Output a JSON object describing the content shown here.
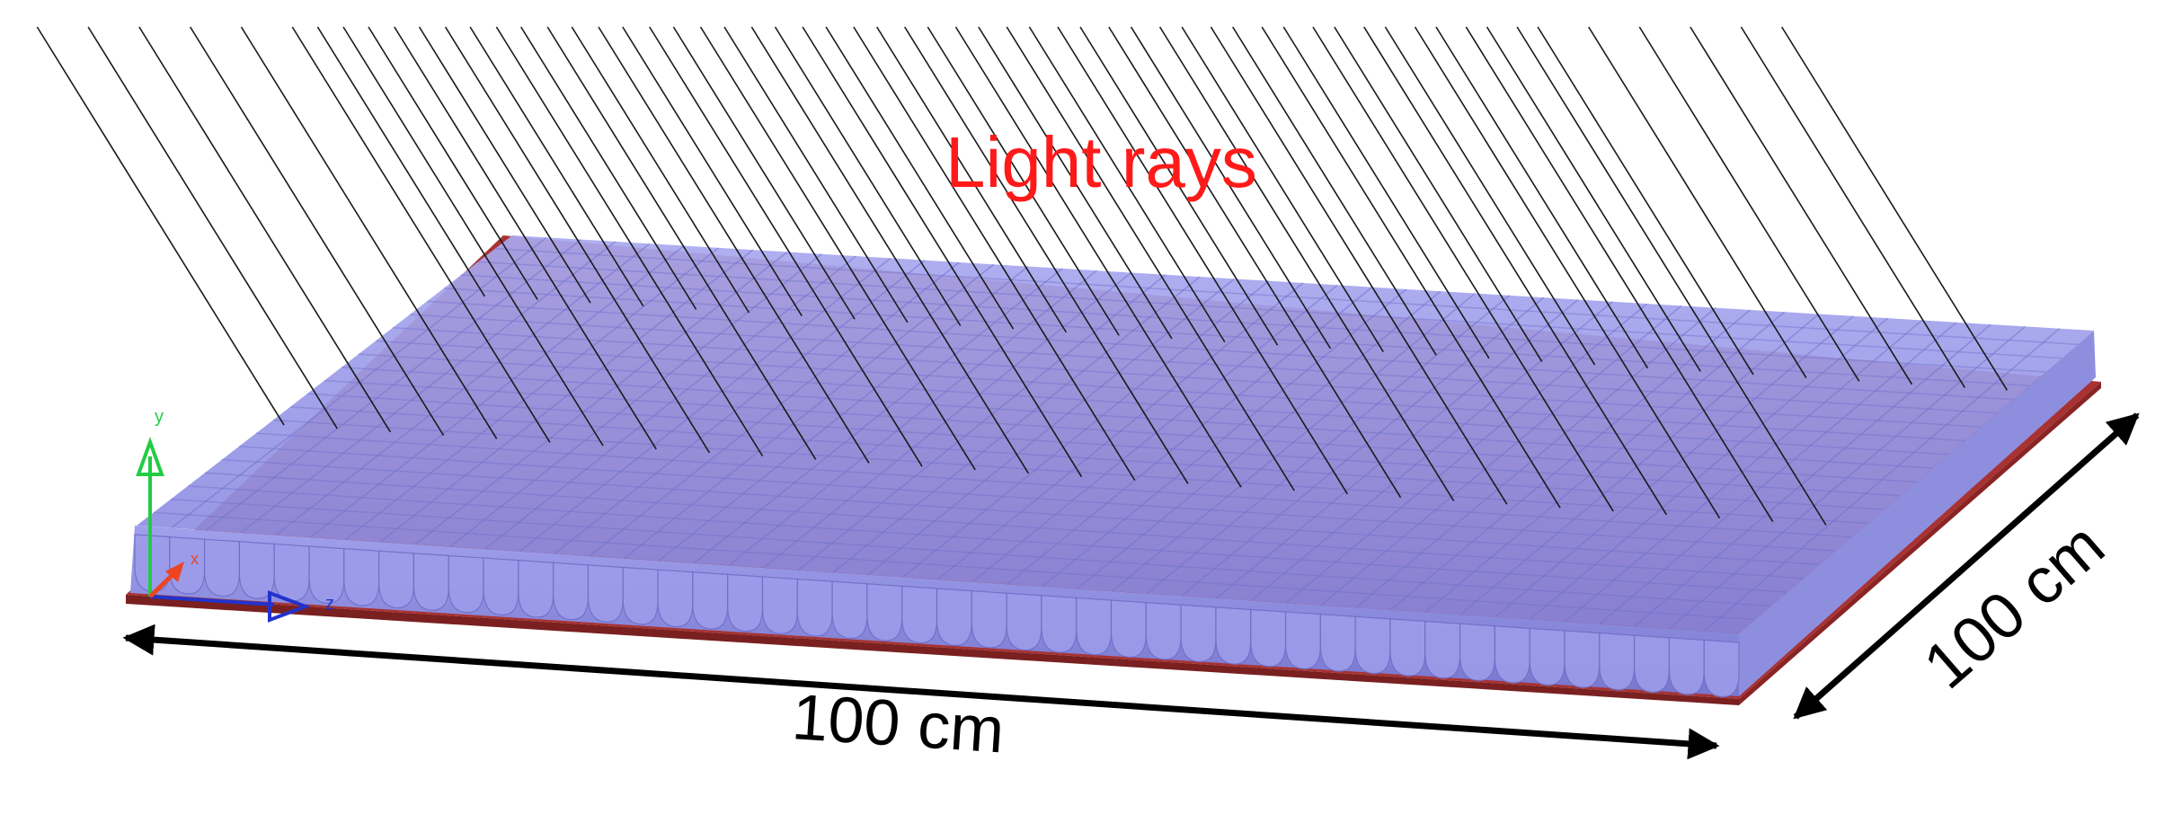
{
  "labels": {
    "light_rays": "Light rays",
    "width_dimension": "100 cm",
    "depth_dimension": "100 cm"
  },
  "axes": {
    "y": "y",
    "x": "x",
    "z": "z"
  },
  "colors": {
    "light_rays_label": "#ff1a1a",
    "ray_line": "#1a1a1a",
    "panel_fill": "#8f8fe8",
    "panel_dome": "#b4b4f2",
    "base_plate": "#a83232",
    "dimension_arrow": "#000000",
    "axis_y": "#22cc44",
    "axis_z": "#2233cc",
    "axis_x": "#ee4422"
  }
}
